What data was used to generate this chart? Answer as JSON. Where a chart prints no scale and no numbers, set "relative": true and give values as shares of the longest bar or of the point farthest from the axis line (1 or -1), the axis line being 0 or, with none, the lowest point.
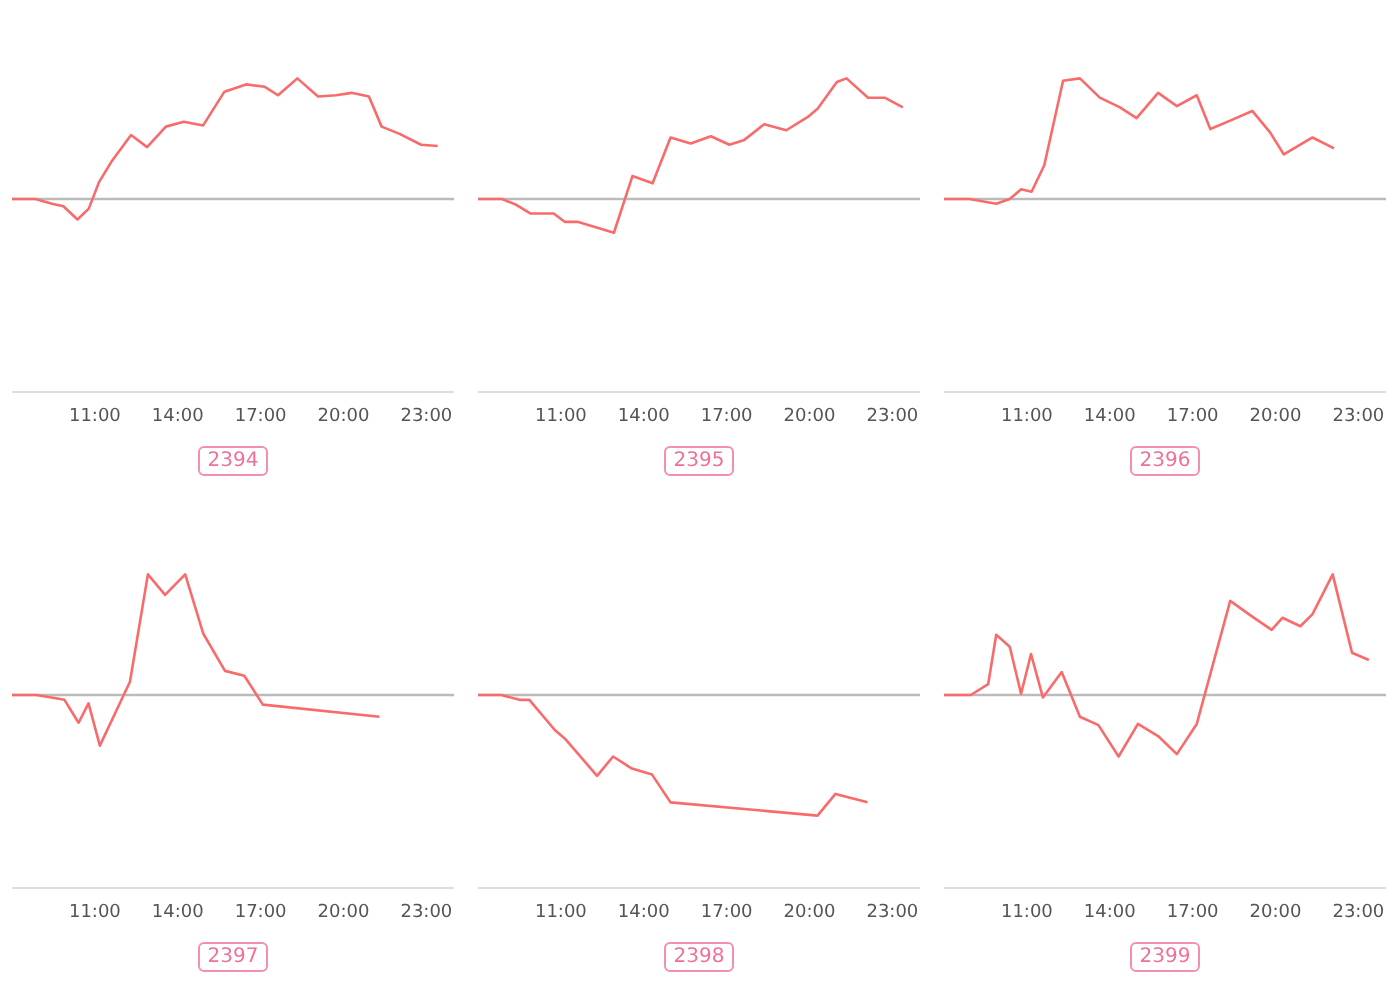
{
  "chart_data": [
    {
      "type": "line",
      "title": "2394",
      "relative": true,
      "xlim": [
        8,
        24
      ],
      "xticks": [
        {
          "value": 11,
          "label": "11:00"
        },
        {
          "value": 14,
          "label": "14:00"
        },
        {
          "value": 17,
          "label": "17:00"
        },
        {
          "value": 20,
          "label": "20:00"
        },
        {
          "value": 23,
          "label": "23:00"
        }
      ],
      "x": [
        8.0,
        8.85,
        9.45,
        9.86,
        10.37,
        10.78,
        11.15,
        11.63,
        12.31,
        12.89,
        13.57,
        14.22,
        14.92,
        15.69,
        16.47,
        17.15,
        17.63,
        18.33,
        19.08,
        19.73,
        20.29,
        20.92,
        21.38,
        22.03,
        22.81,
        23.41
      ],
      "series": [
        {
          "color": "#f96b6b",
          "values": [
            0,
            0,
            -0.04,
            -0.06,
            -0.17,
            -0.08,
            0.14,
            0.32,
            0.53,
            0.43,
            0.6,
            0.64,
            0.61,
            0.89,
            0.95,
            0.93,
            0.86,
            1,
            0.85,
            0.86,
            0.88,
            0.85,
            0.6,
            0.54,
            0.45,
            0.44
          ]
        }
      ]
    },
    {
      "type": "line",
      "title": "2395",
      "relative": true,
      "xlim": [
        8,
        24
      ],
      "xticks": [
        {
          "value": 11,
          "label": "11:00"
        },
        {
          "value": 14,
          "label": "14:00"
        },
        {
          "value": 17,
          "label": "17:00"
        },
        {
          "value": 20,
          "label": "20:00"
        },
        {
          "value": 23,
          "label": "23:00"
        }
      ],
      "x": [
        8.0,
        8.87,
        9.4,
        9.89,
        10.74,
        11.15,
        11.63,
        12.92,
        13.59,
        14.32,
        14.97,
        15.7,
        16.43,
        17.1,
        17.64,
        18.36,
        19.16,
        19.94,
        20.3,
        20.99,
        21.34,
        22.12,
        22.72,
        23.38
      ],
      "series": [
        {
          "color": "#f96b6b",
          "values": [
            0,
            0,
            -0.05,
            -0.12,
            -0.12,
            -0.19,
            -0.19,
            -0.28,
            0.19,
            0.13,
            0.51,
            0.46,
            0.52,
            0.45,
            0.49,
            0.62,
            0.57,
            0.68,
            0.75,
            0.97,
            1,
            0.84,
            0.84,
            0.76
          ]
        }
      ]
    },
    {
      "type": "line",
      "title": "2396",
      "relative": true,
      "xlim": [
        8,
        24
      ],
      "xticks": [
        {
          "value": 11,
          "label": "11:00"
        },
        {
          "value": 14,
          "label": "14:00"
        },
        {
          "value": 17,
          "label": "17:00"
        },
        {
          "value": 20,
          "label": "20:00"
        },
        {
          "value": 23,
          "label": "23:00"
        }
      ],
      "x": [
        8.0,
        8.92,
        9.89,
        10.38,
        10.79,
        11.17,
        11.63,
        12.31,
        12.92,
        13.64,
        14.37,
        14.97,
        15.75,
        16.43,
        17.15,
        17.64,
        18.36,
        19.16,
        19.81,
        20.3,
        21.34,
        22.12
      ],
      "series": [
        {
          "color": "#f96b6b",
          "values": [
            0,
            0,
            -0.04,
            0,
            0.08,
            0.06,
            0.28,
            0.98,
            1,
            0.84,
            0.76,
            0.67,
            0.88,
            0.77,
            0.86,
            0.58,
            0.65,
            0.73,
            0.55,
            0.37,
            0.51,
            0.42
          ]
        }
      ]
    },
    {
      "type": "line",
      "title": "2397",
      "relative": true,
      "xlim": [
        8,
        24
      ],
      "xticks": [
        {
          "value": 11,
          "label": "11:00"
        },
        {
          "value": 14,
          "label": "14:00"
        },
        {
          "value": 17,
          "label": "17:00"
        },
        {
          "value": 20,
          "label": "20:00"
        },
        {
          "value": 23,
          "label": "23:00"
        }
      ],
      "x": [
        8.0,
        8.89,
        9.9,
        10.41,
        10.77,
        11.18,
        12.27,
        12.92,
        13.54,
        14.27,
        14.92,
        15.71,
        16.41,
        17.08,
        21.3
      ],
      "series": [
        {
          "color": "#f96b6b",
          "values": [
            0,
            0,
            -0.04,
            -0.23,
            -0.07,
            -0.42,
            0.11,
            1,
            0.83,
            1,
            0.51,
            0.2,
            0.16,
            -0.08,
            -0.18
          ]
        }
      ]
    },
    {
      "type": "line",
      "title": "2398",
      "relative": true,
      "xlim": [
        8,
        24
      ],
      "xticks": [
        {
          "value": 11,
          "label": "11:00"
        },
        {
          "value": 14,
          "label": "14:00"
        },
        {
          "value": 17,
          "label": "17:00"
        },
        {
          "value": 20,
          "label": "20:00"
        },
        {
          "value": 23,
          "label": "23:00"
        }
      ],
      "x": [
        8.0,
        8.85,
        9.5,
        9.86,
        10.78,
        11.14,
        12.31,
        12.89,
        13.57,
        14.3,
        14.97,
        20.29,
        20.94,
        22.1
      ],
      "series": [
        {
          "color": "#f96b6b",
          "values": [
            0,
            0,
            -0.04,
            -0.04,
            -0.29,
            -0.36,
            -0.67,
            -0.51,
            -0.61,
            -0.66,
            -0.89,
            -1,
            -0.82,
            -0.89
          ]
        }
      ]
    },
    {
      "type": "line",
      "title": "2399",
      "relative": true,
      "xlim": [
        8,
        24
      ],
      "xticks": [
        {
          "value": 11,
          "label": "11:00"
        },
        {
          "value": 14,
          "label": "14:00"
        },
        {
          "value": 17,
          "label": "17:00"
        },
        {
          "value": 20,
          "label": "20:00"
        },
        {
          "value": 23,
          "label": "23:00"
        }
      ],
      "x": [
        8.0,
        8.97,
        9.6,
        9.89,
        10.38,
        10.79,
        11.15,
        11.58,
        12.26,
        12.92,
        13.59,
        14.32,
        15.02,
        15.75,
        16.43,
        17.15,
        18.36,
        19.16,
        19.86,
        20.25,
        20.9,
        21.34,
        22.07,
        22.77,
        23.38
      ],
      "series": [
        {
          "color": "#f96b6b",
          "values": [
            0,
            0,
            0.09,
            0.5,
            0.4,
            0.01,
            0.34,
            -0.02,
            0.19,
            -0.18,
            -0.25,
            -0.51,
            -0.24,
            -0.34,
            -0.49,
            -0.24,
            0.78,
            0.65,
            0.54,
            0.64,
            0.57,
            0.67,
            1,
            0.35,
            0.29
          ]
        }
      ]
    }
  ]
}
